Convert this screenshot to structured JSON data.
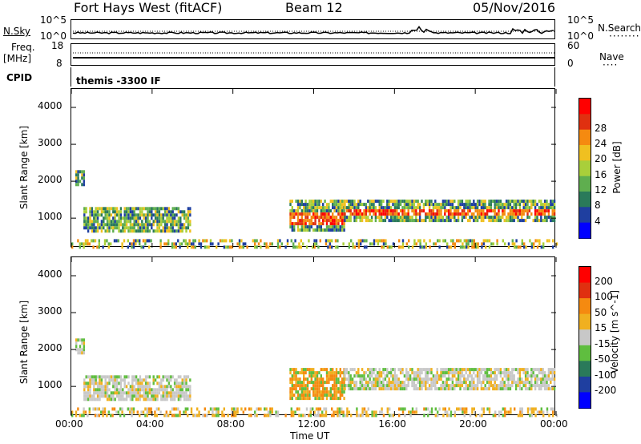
{
  "header": {
    "station": "Fort Hays West (fitACF)",
    "beam": "Beam 12",
    "date": "05/Nov/2016"
  },
  "strip": {
    "nsky": "N.Sky",
    "nsky_ticks": [
      "10^5",
      "10^0"
    ],
    "nsearch": "N.Search",
    "nsearch_ticks": [
      "10^5",
      "10^0"
    ],
    "freq": "Freq.",
    "freq_unit": "[MHz]",
    "freq_ticks": [
      "18",
      "8"
    ],
    "nave": "Nave",
    "nave_ticks": [
      "60",
      "0"
    ],
    "cpid": "CPID",
    "cpid_text": "themis -3300 IF"
  },
  "chart_data": [
    {
      "type": "heatmap",
      "title": "Power",
      "ylabel": "Slant Range [km]",
      "xlabel": "Time UT",
      "x_ticks": [
        "00:00",
        "04:00",
        "08:00",
        "12:00",
        "16:00",
        "20:00",
        "00:00"
      ],
      "y_ticks": [
        "1000",
        "2000",
        "3000",
        "4000"
      ],
      "ylim": [
        200,
        4500
      ],
      "xlim_hours": [
        0,
        24
      ],
      "colorbar": {
        "label": "Power [dB]",
        "ticks": [
          "4",
          "8",
          "12",
          "16",
          "20",
          "24",
          "28"
        ],
        "colors": [
          "#0000ff",
          "#1f3fa0",
          "#2a7a5a",
          "#5fae4f",
          "#a9cf3a",
          "#f0c020",
          "#f58a10",
          "#e03010",
          "#ff0000"
        ]
      },
      "regions": [
        {
          "t": [
            0.2,
            0.6
          ],
          "r": [
            1900,
            2300
          ],
          "level": "mixed"
        },
        {
          "t": [
            0.6,
            5.9
          ],
          "r": [
            650,
            1300
          ],
          "level": "moderate"
        },
        {
          "t": [
            10.8,
            13.5
          ],
          "r": [
            650,
            1500
          ],
          "level": "strong"
        },
        {
          "t": [
            13.5,
            23.9
          ],
          "r": [
            950,
            1500
          ],
          "level": "strong"
        },
        {
          "t": [
            0.0,
            24.0
          ],
          "r": [
            250,
            430
          ],
          "level": "weak"
        }
      ]
    },
    {
      "type": "heatmap",
      "ylabel": "Slant Range [km]",
      "xlabel": "Time UT",
      "x_ticks": [
        "00:00",
        "04:00",
        "08:00",
        "12:00",
        "16:00",
        "20:00",
        "00:00"
      ],
      "y_ticks": [
        "1000",
        "2000",
        "3000",
        "4000"
      ],
      "ylim": [
        200,
        4500
      ],
      "xlim_hours": [
        0,
        24
      ],
      "colorbar": {
        "label": "Velocity [m s^-1]",
        "ticks": [
          "200",
          "100",
          "50",
          "15",
          "-15",
          "-50",
          "-100",
          "-200"
        ],
        "colors": [
          "#0000ff",
          "#1f3fa0",
          "#2a7a5a",
          "#5fbe3f",
          "#c8c8c8",
          "#f0b020",
          "#f58a10",
          "#e03010",
          "#ff0000"
        ]
      }
    }
  ]
}
